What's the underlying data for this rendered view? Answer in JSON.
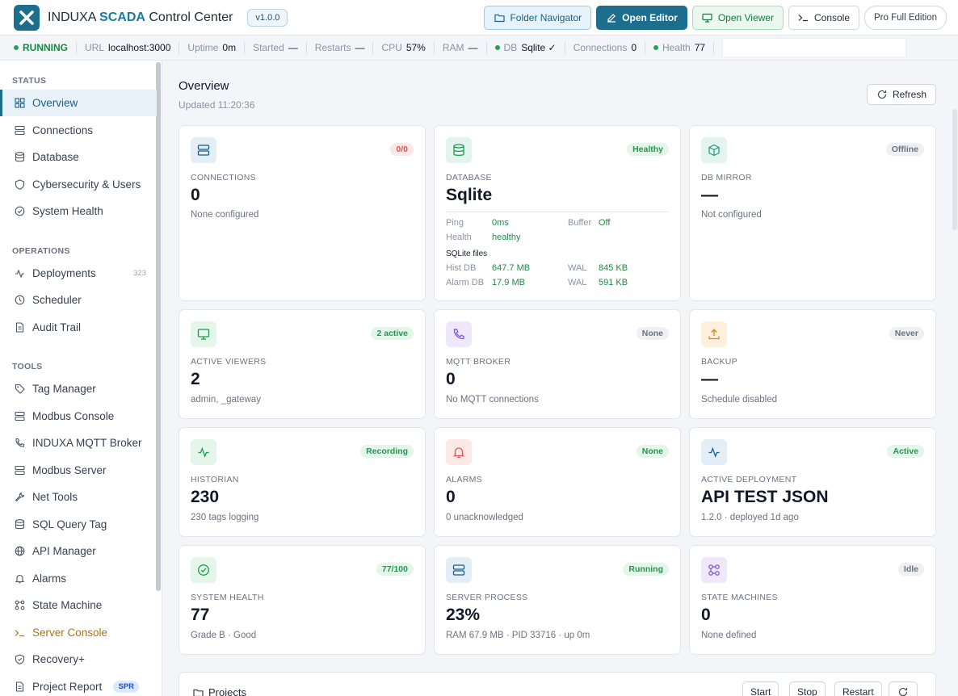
{
  "header": {
    "brand_prefix": "INDUXA",
    "brand_scada": "SCADA",
    "brand_suffix": "Control Center",
    "version": "v1.0.0",
    "buttons": {
      "folder_navigator": "Folder Navigator",
      "open_editor": "Open Editor",
      "open_viewer": "Open Viewer",
      "console": "Console",
      "edition": "Pro Full Edition"
    }
  },
  "status_bar": {
    "state": "RUNNING",
    "url_label": "URL",
    "url_value": "localhost:3000",
    "uptime_label": "Uptime",
    "uptime_value": "0m",
    "started_label": "Started",
    "started_value": "—",
    "restarts_label": "Restarts",
    "restarts_value": "—",
    "cpu_label": "CPU",
    "cpu_value": "57%",
    "ram_label": "RAM",
    "ram_value": "—",
    "db_label": "DB",
    "db_value": "Sqlite ✓",
    "connections_label": "Connections",
    "connections_value": "0",
    "health_label": "Health",
    "health_value": "77"
  },
  "sidebar": {
    "status_section": "STATUS",
    "operations_section": "OPERATIONS",
    "tools_section": "TOOLS",
    "items": {
      "overview": "Overview",
      "connections": "Connections",
      "database": "Database",
      "cybersecurity": "Cybersecurity & Users",
      "system_health": "System Health",
      "deployments": "Deployments",
      "deployments_count": "323",
      "scheduler": "Scheduler",
      "audit_trail": "Audit Trail",
      "tag_manager": "Tag Manager",
      "modbus_console": "Modbus Console",
      "mqtt_broker": "INDUXA MQTT Broker",
      "modbus_server": "Modbus Server",
      "net_tools": "Net Tools",
      "sql_query_tag": "SQL Query Tag",
      "api_manager": "API Manager",
      "alarms": "Alarms",
      "state_machine": "State Machine",
      "server_console": "Server Console",
      "recovery": "Recovery+",
      "project_report": "Project Report",
      "project_report_tag": "SPR"
    }
  },
  "main": {
    "title": "Overview",
    "updated": "Updated 11:20:36",
    "refresh": "Refresh"
  },
  "cards": {
    "connections": {
      "badge": "0/0",
      "label": "CONNECTIONS",
      "value": "0",
      "note": "None configured"
    },
    "database": {
      "badge": "Healthy",
      "label": "DATABASE",
      "value": "Sqlite",
      "ping_label": "Ping",
      "ping_value": "0ms",
      "buffer_label": "Buffer",
      "buffer_value": "Off",
      "health_label": "Health",
      "health_value": "healthy",
      "files_title": "SQLite files",
      "hist_label": "Hist DB",
      "hist_value": "647.7 MB",
      "hist_wal_label": "WAL",
      "hist_wal_value": "845 KB",
      "alarm_label": "Alarm DB",
      "alarm_value": "17.9 MB",
      "alarm_wal_label": "WAL",
      "alarm_wal_value": "591 KB"
    },
    "db_mirror": {
      "badge": "Offline",
      "label": "DB MIRROR",
      "value": "—",
      "note": "Not configured"
    },
    "active_viewers": {
      "badge": "2 active",
      "label": "ACTIVE VIEWERS",
      "value": "2",
      "note": "admin, _gateway"
    },
    "mqtt_broker": {
      "badge": "None",
      "label": "MQTT BROKER",
      "value": "0",
      "note": "No MQTT connections"
    },
    "backup": {
      "badge": "Never",
      "label": "BACKUP",
      "value": "—",
      "note": "Schedule disabled"
    },
    "historian": {
      "badge": "Recording",
      "label": "HISTORIAN",
      "value": "230",
      "note": "230 tags logging"
    },
    "alarms": {
      "badge": "None",
      "label": "ALARMS",
      "value": "0",
      "note": "0 unacknowledged"
    },
    "active_deployment": {
      "badge": "Active",
      "label": "ACTIVE DEPLOYMENT",
      "value": "API TEST JSON",
      "note": "1.2.0 · deployed 1d ago"
    },
    "system_health": {
      "badge": "77/100",
      "label": "SYSTEM HEALTH",
      "value": "77",
      "note": "Grade B · Good"
    },
    "server_process": {
      "badge": "Running",
      "label": "SERVER PROCESS",
      "value": "23%",
      "note": "RAM 67.9 MB · PID 33716 · up 0m"
    },
    "state_machines": {
      "badge": "Idle",
      "label": "STATE MACHINES",
      "value": "0",
      "note": "None defined"
    }
  },
  "projects": {
    "title": "Projects",
    "start": "Start",
    "stop": "Stop",
    "restart": "Restart"
  },
  "colors": {
    "accent": "#1c6e8c",
    "running": "#168a3e",
    "healthy": "#1f9a4b",
    "alert": "#e05252",
    "console_item": "#b07412"
  }
}
